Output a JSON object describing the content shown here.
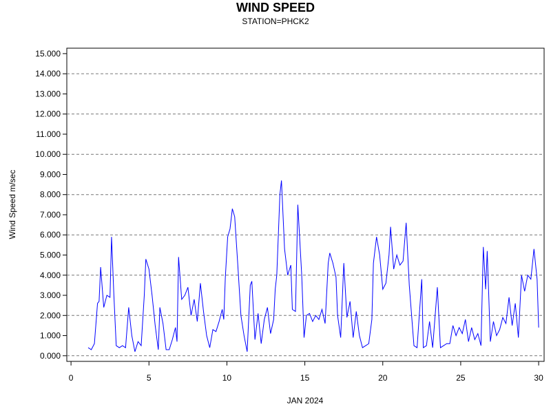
{
  "chart_data": {
    "type": "line",
    "title": "WIND SPEED",
    "subtitle": "STATION=PHCK2",
    "x_label": "JAN 2024",
    "y_label": "Wind Speed m/sec",
    "xlim": [
      -0.27,
      30.35
    ],
    "ylim": [
      -0.28,
      15.27
    ],
    "xticks": [
      0,
      5,
      10,
      15,
      20,
      25,
      30
    ],
    "yticks": [
      {
        "value": 0,
        "label": "0.000"
      },
      {
        "value": 1,
        "label": "1.000"
      },
      {
        "value": 2,
        "label": "2.000"
      },
      {
        "value": 3,
        "label": "3.000"
      },
      {
        "value": 4,
        "label": "4.000"
      },
      {
        "value": 5,
        "label": "5.000"
      },
      {
        "value": 6,
        "label": "6.000"
      },
      {
        "value": 7,
        "label": "7.000"
      },
      {
        "value": 8,
        "label": "8.000"
      },
      {
        "value": 9,
        "label": "9.000"
      },
      {
        "value": 10,
        "label": "10.000"
      },
      {
        "value": 11,
        "label": "11.000"
      },
      {
        "value": 12,
        "label": "12.000"
      },
      {
        "value": 13,
        "label": "13.000"
      },
      {
        "value": 14,
        "label": "14.000"
      },
      {
        "value": 15,
        "label": "15.000"
      }
    ],
    "grid_lines": [
      0,
      2,
      4,
      6,
      8,
      10,
      12,
      14
    ],
    "color": "#0000ff",
    "x": [
      1.1,
      1.3,
      1.5,
      1.7,
      1.8,
      1.9,
      2.1,
      2.3,
      2.5,
      2.6,
      2.75,
      2.9,
      3.1,
      3.3,
      3.5,
      3.7,
      3.9,
      4.1,
      4.3,
      4.5,
      4.7,
      4.8,
      5.0,
      5.2,
      5.4,
      5.6,
      5.7,
      5.9,
      6.1,
      6.3,
      6.5,
      6.7,
      6.8,
      6.9,
      7.1,
      7.3,
      7.5,
      7.7,
      7.9,
      8.1,
      8.3,
      8.5,
      8.7,
      8.9,
      9.1,
      9.3,
      9.5,
      9.7,
      9.8,
      9.9,
      10.05,
      10.2,
      10.35,
      10.5,
      10.7,
      10.9,
      11.1,
      11.3,
      11.5,
      11.6,
      11.8,
      12.0,
      12.2,
      12.4,
      12.6,
      12.8,
      13.0,
      13.1,
      13.2,
      13.4,
      13.5,
      13.7,
      13.9,
      14.1,
      14.2,
      14.4,
      14.55,
      14.8,
      14.95,
      15.1,
      15.3,
      15.5,
      15.7,
      15.9,
      16.1,
      16.3,
      16.5,
      16.6,
      16.8,
      17.0,
      17.1,
      17.3,
      17.5,
      17.7,
      17.9,
      18.1,
      18.3,
      18.5,
      18.7,
      18.9,
      19.1,
      19.3,
      19.4,
      19.6,
      19.8,
      20.0,
      20.2,
      20.4,
      20.5,
      20.7,
      20.9,
      21.1,
      21.3,
      21.5,
      21.7,
      21.9,
      22.0,
      22.2,
      22.5,
      22.6,
      22.8,
      23.0,
      23.2,
      23.5,
      23.7,
      23.9,
      24.1,
      24.3,
      24.5,
      24.7,
      24.9,
      25.1,
      25.3,
      25.5,
      25.7,
      25.9,
      26.1,
      26.3,
      26.45,
      26.6,
      26.7,
      26.9,
      27.1,
      27.3,
      27.5,
      27.7,
      27.9,
      28.1,
      28.3,
      28.5,
      28.7,
      28.9,
      29.1,
      29.3,
      29.5,
      29.7,
      29.9,
      30.0
    ],
    "values": [
      0.4,
      0.3,
      0.6,
      2.6,
      2.7,
      4.4,
      2.4,
      3.0,
      2.9,
      5.9,
      3.0,
      0.5,
      0.4,
      0.5,
      0.4,
      2.4,
      1.0,
      0.2,
      0.7,
      0.5,
      3.0,
      4.8,
      4.3,
      3.0,
      1.5,
      0.3,
      2.4,
      1.6,
      0.3,
      0.3,
      0.8,
      1.4,
      0.7,
      4.9,
      2.8,
      3.0,
      3.4,
      2.0,
      2.8,
      1.7,
      3.6,
      2.2,
      1.0,
      0.4,
      1.3,
      1.2,
      1.7,
      2.3,
      1.8,
      3.9,
      5.9,
      6.3,
      7.3,
      6.9,
      4.5,
      2.0,
      1.0,
      0.2,
      3.5,
      3.7,
      0.8,
      2.1,
      0.6,
      1.8,
      2.4,
      1.1,
      1.8,
      3.3,
      4.0,
      8.0,
      8.7,
      5.3,
      4.0,
      4.5,
      2.3,
      2.2,
      7.5,
      4.0,
      0.9,
      2.0,
      2.1,
      1.7,
      2.0,
      1.8,
      2.3,
      1.6,
      4.6,
      5.1,
      4.6,
      3.9,
      2.0,
      0.9,
      4.6,
      1.9,
      2.7,
      0.9,
      2.2,
      1.0,
      0.4,
      0.5,
      0.6,
      1.8,
      4.6,
      5.9,
      5.0,
      3.3,
      3.6,
      5.0,
      6.4,
      4.3,
      5.0,
      4.5,
      4.7,
      6.6,
      3.5,
      1.5,
      0.5,
      0.4,
      3.8,
      0.4,
      0.5,
      1.7,
      0.4,
      3.4,
      0.4,
      0.5,
      0.6,
      0.6,
      1.5,
      1.0,
      1.4,
      1.1,
      1.8,
      0.7,
      1.4,
      0.8,
      1.1,
      0.5,
      5.4,
      3.3,
      5.2,
      0.7,
      1.7,
      1.0,
      1.3,
      1.9,
      1.6,
      2.9,
      1.5,
      2.6,
      0.9,
      4.0,
      3.2,
      4.0,
      3.8,
      5.3,
      3.8,
      1.4
    ]
  }
}
